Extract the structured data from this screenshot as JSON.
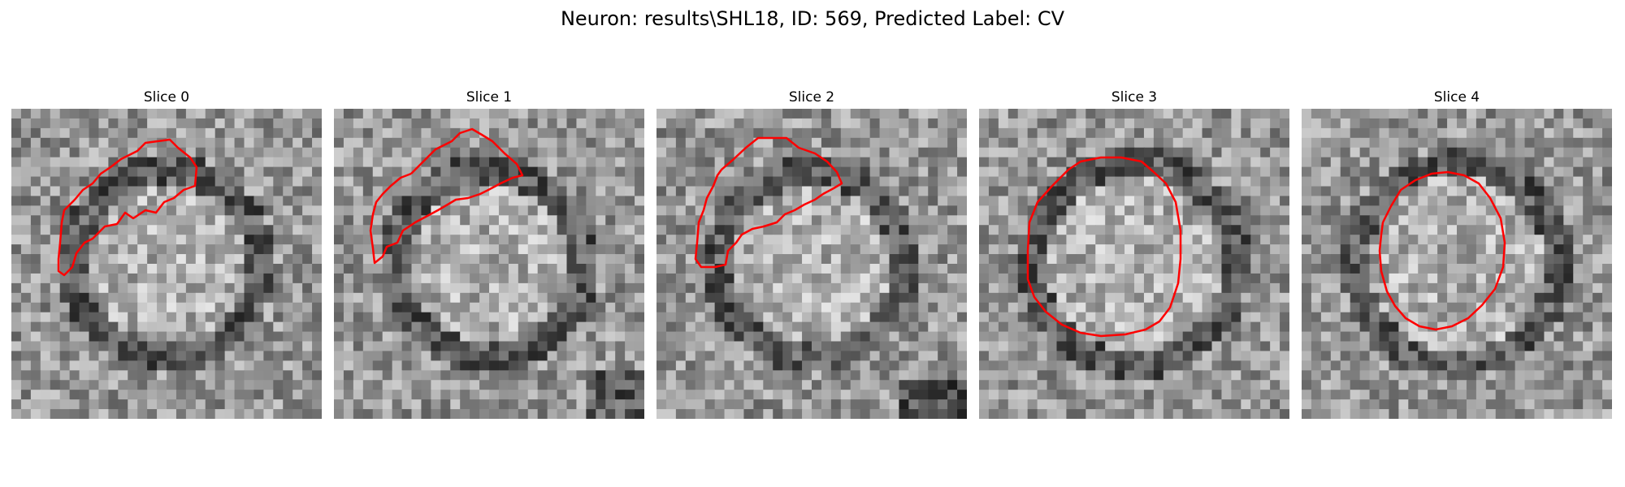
{
  "figure": {
    "title": "Neuron: results\\SHL18, ID: 569, Predicted Label: CV"
  },
  "panels": [
    {
      "title": "Slice 0",
      "contour": "irregular open crescent outline (top-left)"
    },
    {
      "title": "Slice 1",
      "contour": "irregular crescent outline (upper-left)"
    },
    {
      "title": "Slice 2",
      "contour": "irregular crescent outline (upper half)"
    },
    {
      "title": "Slice 3",
      "contour": "large closed near-circular outline"
    },
    {
      "title": "Slice 4",
      "contour": "closed near-circular outline"
    }
  ],
  "colors": {
    "contour": "#ff0000",
    "background": "#ffffff"
  }
}
